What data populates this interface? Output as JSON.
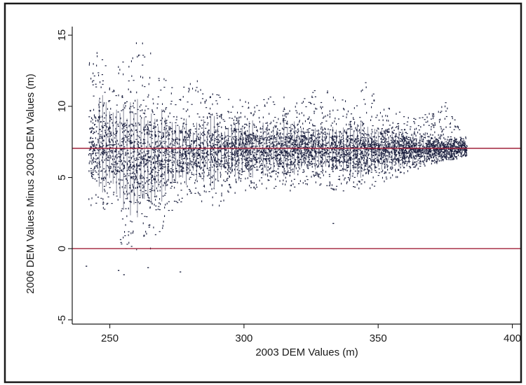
{
  "chart_data": {
    "type": "scatter",
    "title": "",
    "xlabel": "2003 DEM Values (m)",
    "ylabel": "2006 DEM Values Minus 2003 DEM Values (m)",
    "xlim": [
      236,
      403
    ],
    "ylim": [
      -5.3,
      15.6
    ],
    "x_ticks": [
      250,
      300,
      350,
      400
    ],
    "y_ticks": [
      -5,
      0,
      5,
      10,
      15
    ],
    "x_tick_labels": [
      "250",
      "300",
      "350",
      "400"
    ],
    "y_tick_labels": [
      "-5",
      "0",
      "5",
      "10",
      "15"
    ],
    "grid": false,
    "legend": "none",
    "point_color": "#1c2140",
    "reference_line_color": "#a0213a",
    "reference_lines": [
      {
        "orientation": "horizontal",
        "y": 0
      },
      {
        "orientation": "horizontal",
        "y": 7.05
      }
    ],
    "point_cloud_envelope": {
      "description": "dense cloud of differences vs 2003 elevation; points span x ~241-383",
      "x": [
        242,
        246,
        250,
        254,
        258,
        262,
        266,
        270,
        275,
        280,
        285,
        290,
        295,
        300,
        305,
        310,
        315,
        320,
        325,
        330,
        335,
        340,
        345,
        350,
        355,
        360,
        365,
        370,
        375,
        380,
        383
      ],
      "y_center": [
        7.2,
        7.4,
        7.3,
        6.5,
        6.3,
        6.4,
        6.3,
        6.6,
        6.8,
        6.8,
        6.9,
        6.8,
        7.0,
        7.0,
        7.0,
        7.0,
        7.0,
        7.1,
        7.0,
        7.0,
        7.0,
        6.9,
        6.9,
        7.0,
        7.0,
        7.0,
        7.0,
        7.0,
        7.0,
        7.1,
        7.0
      ],
      "y_min": [
        3.0,
        2.5,
        2.0,
        0.0,
        -0.3,
        -0.5,
        -0.2,
        1.5,
        3.0,
        3.5,
        3.3,
        3.0,
        3.5,
        4.0,
        4.2,
        4.3,
        4.0,
        4.3,
        4.5,
        4.2,
        4.0,
        4.0,
        4.2,
        4.5,
        5.0,
        5.2,
        5.6,
        6.0,
        6.2,
        6.4,
        6.6
      ],
      "y_max": [
        13.5,
        14.0,
        12.5,
        13.0,
        14.5,
        14.8,
        13.5,
        12.0,
        11.0,
        12.2,
        12.0,
        11.0,
        10.5,
        10.6,
        10.6,
        10.7,
        10.8,
        10.7,
        11.0,
        11.6,
        10.8,
        10.6,
        11.8,
        10.4,
        9.8,
        9.6,
        9.4,
        9.6,
        10.3,
        8.5,
        7.8
      ]
    },
    "outliers": [
      {
        "x": 241,
        "y": -1.2
      },
      {
        "x": 253,
        "y": -1.5
      },
      {
        "x": 255,
        "y": -1.8
      },
      {
        "x": 264,
        "y": -1.3
      },
      {
        "x": 276,
        "y": -1.6
      },
      {
        "x": 333,
        "y": 1.8
      }
    ]
  }
}
